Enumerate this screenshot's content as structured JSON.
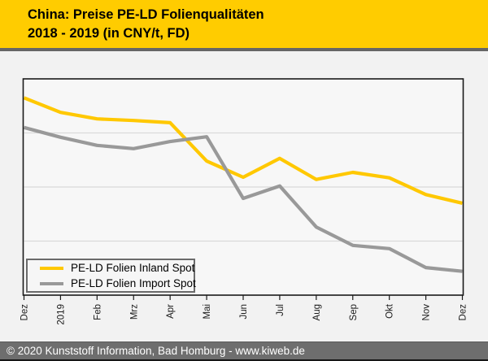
{
  "header": {
    "title_line1": "China: Preise PE-LD Folienqualitäten",
    "title_line2": "2018 - 2019 (in CNY/t, FD)",
    "background": "#FFCC00",
    "divider_color": "#666666"
  },
  "chart_data": {
    "type": "line",
    "title": "China: Preise PE-LD Folienqualitäten 2018 - 2019 (in CNY/t, FD)",
    "xlabel": "",
    "ylabel": "",
    "x_categories": [
      "Dez",
      "2019",
      "Feb",
      "Mrz",
      "Apr",
      "Mai",
      "Jun",
      "Jul",
      "Aug",
      "Sep",
      "Okt",
      "Nov",
      "Dez"
    ],
    "x_label_rotation_deg": -90,
    "y_axis": {
      "tick_labels_visible": false,
      "note": "y-axis has no printed values; series values below are estimated in gridline units above the bottom plot border",
      "range": [
        0,
        4
      ],
      "gridlines_at": [
        1,
        2,
        3
      ],
      "grid_on": true
    },
    "series": [
      {
        "name": "PE-LD Folien Inland Spot",
        "color": "#FFC800",
        "values": [
          3.65,
          3.38,
          3.26,
          3.23,
          3.19,
          2.48,
          2.18,
          2.53,
          2.14,
          2.27,
          2.17,
          1.86,
          1.7
        ]
      },
      {
        "name": "PE-LD Folien Import Spot",
        "color": "#999999",
        "values": [
          3.1,
          2.92,
          2.77,
          2.71,
          2.84,
          2.93,
          1.79,
          2.02,
          1.26,
          0.92,
          0.86,
          0.51,
          0.44
        ]
      }
    ],
    "legend_position": "inside bottom-left",
    "grid_color": "#D9D9D9",
    "plot_background": "#F7F7F7",
    "border_color": "#1A1A1A",
    "tick_color": "#1A1A1A",
    "x_label_color": "#1A1A1A"
  },
  "footer": {
    "text": "© 2020 Kunststoff Information, Bad Homburg - www.kiweb.de",
    "background": "#6E6E6E",
    "text_color": "#FFFFFF"
  }
}
